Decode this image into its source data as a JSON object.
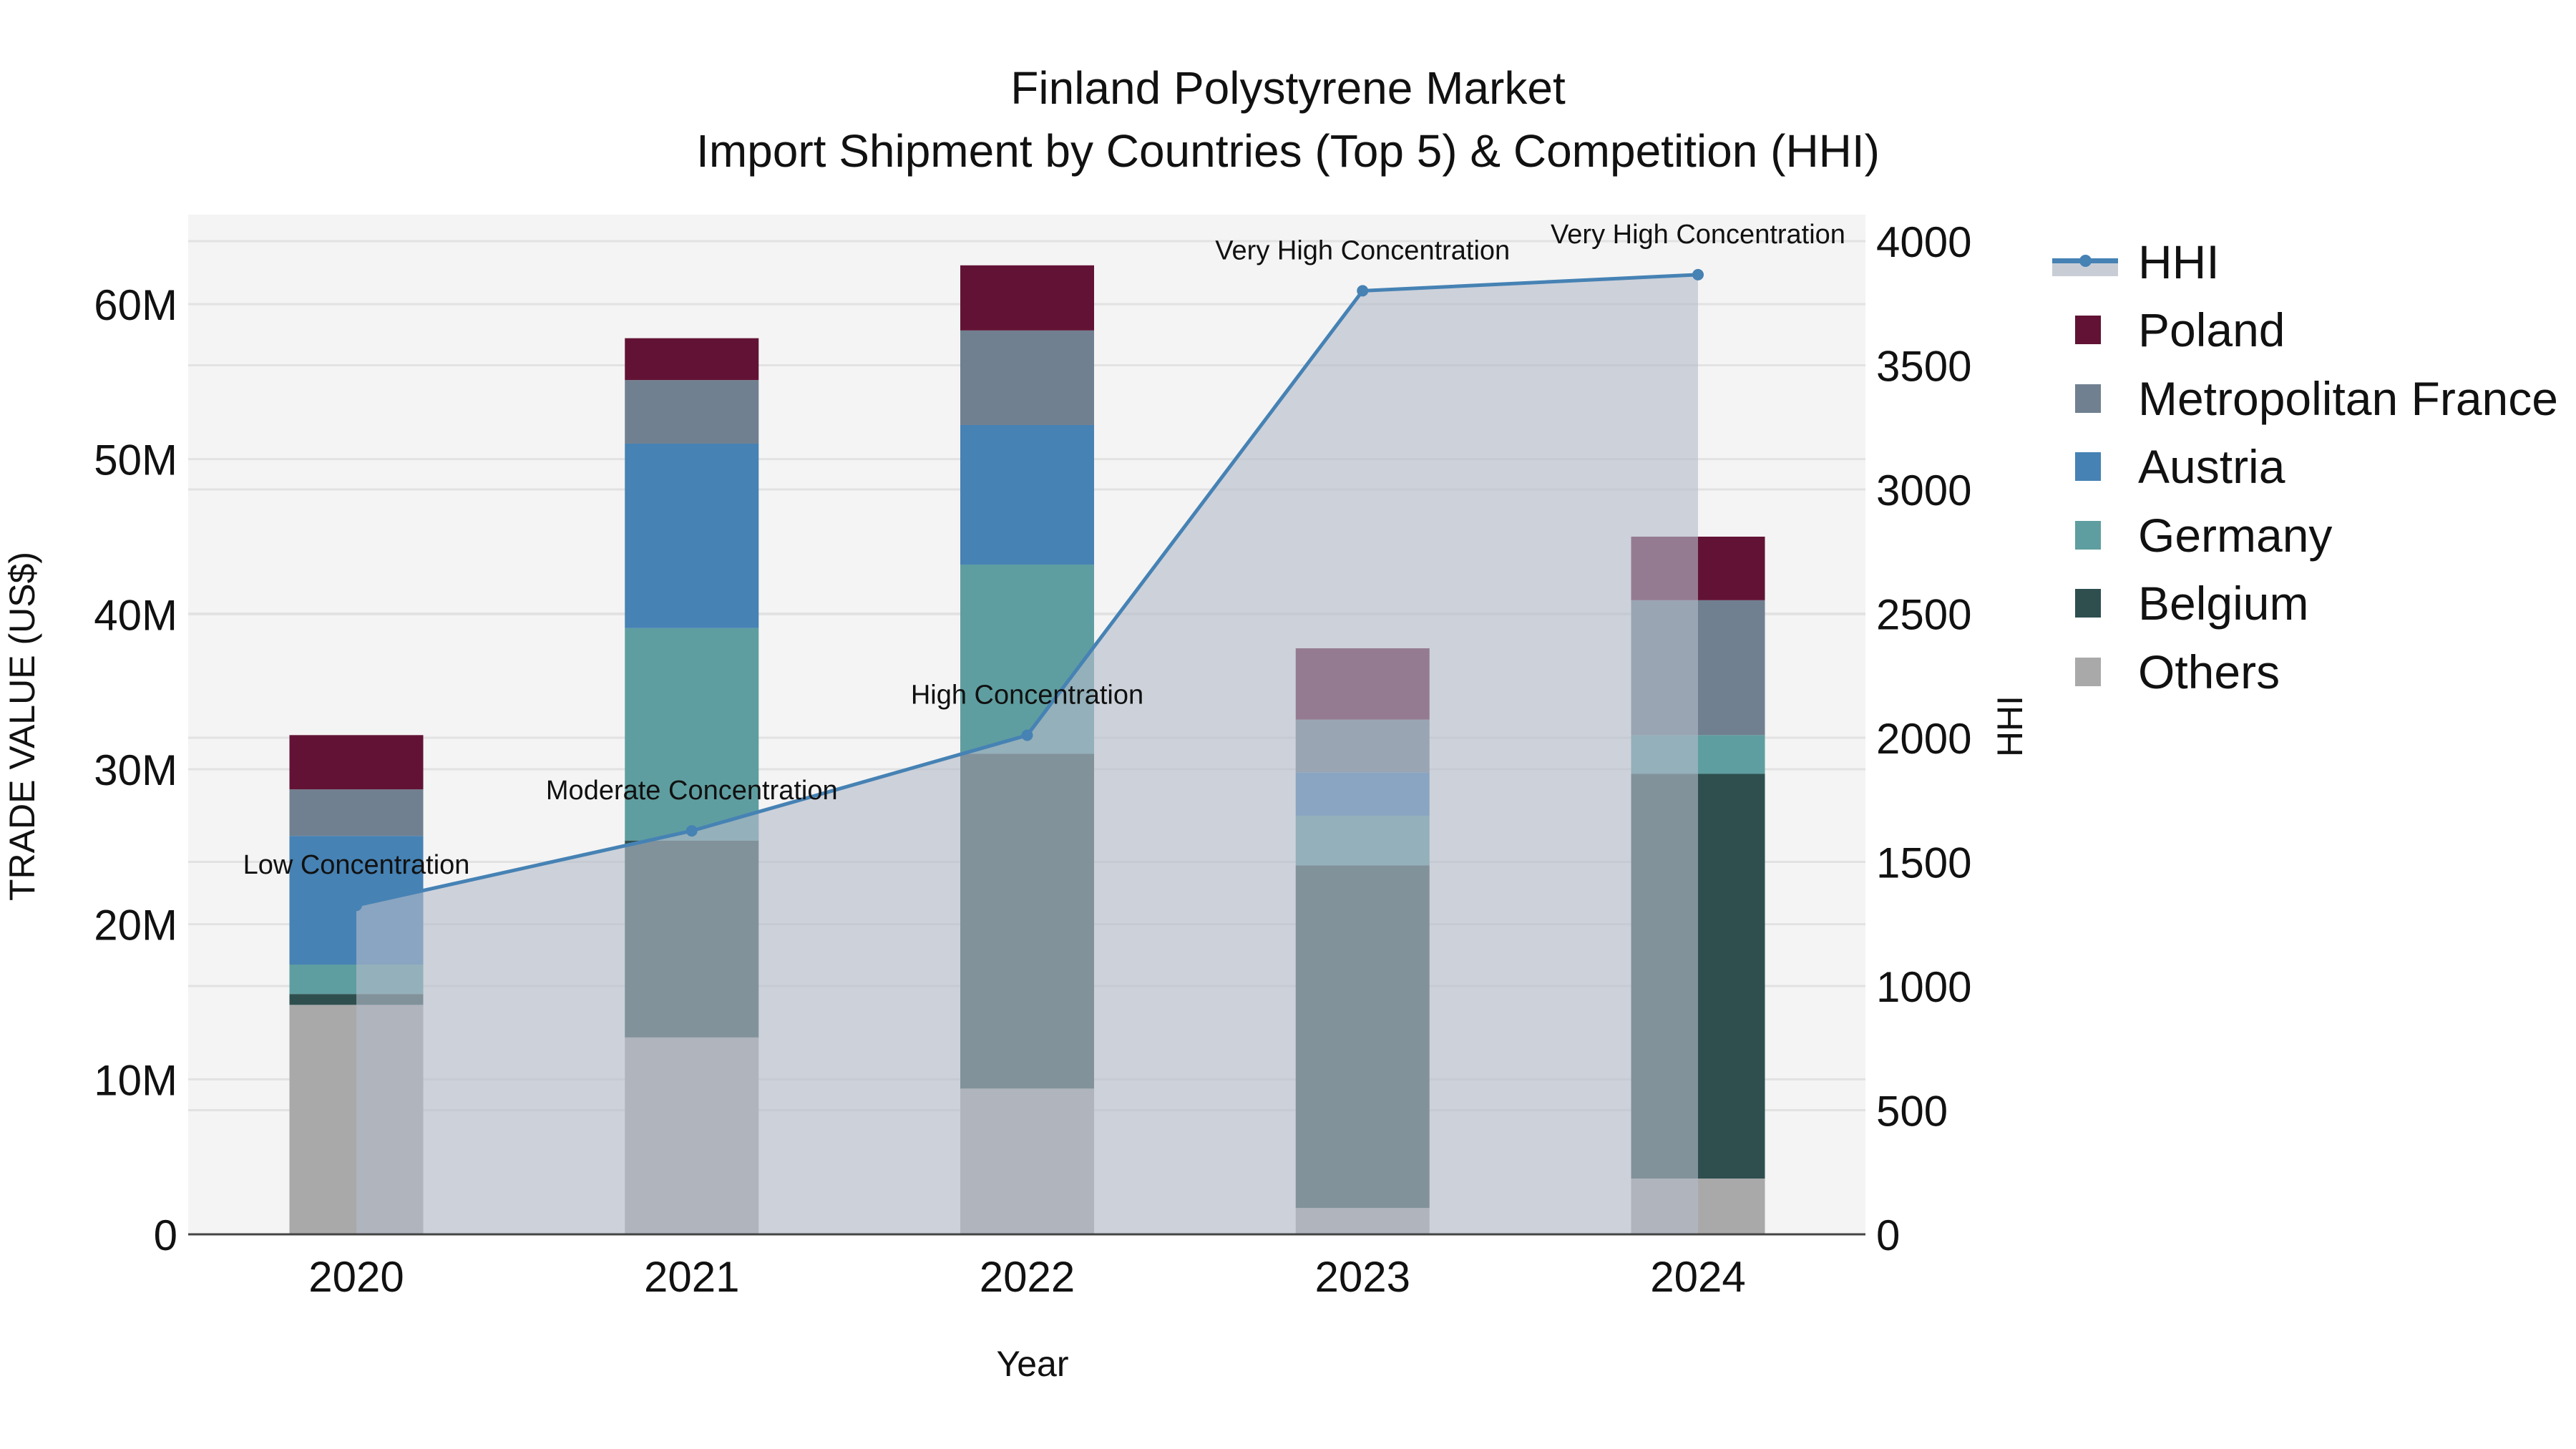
{
  "title": {
    "line1": "Finland Polystyrene Market",
    "line2": "Import Shipment by Countries (Top 5) & Competition (HHI)"
  },
  "axes": {
    "x_label": "Year",
    "y_left_label": "TRADE VALUE (US$)",
    "y_right_label": "HHI",
    "y_left_ticks": [
      "0",
      "10M",
      "20M",
      "30M",
      "40M",
      "50M",
      "60M"
    ],
    "y_right_ticks": [
      "0",
      "500",
      "1000",
      "1500",
      "2000",
      "2500",
      "3000",
      "3500",
      "4000"
    ]
  },
  "legend": [
    {
      "name": "HHI",
      "type": "line",
      "color": "#4682b4"
    },
    {
      "name": "Poland",
      "type": "bar",
      "color": "#621335"
    },
    {
      "name": "Metropolitan France",
      "type": "bar",
      "color": "#708090"
    },
    {
      "name": "Austria",
      "type": "bar",
      "color": "#4682b4"
    },
    {
      "name": "Germany",
      "type": "bar",
      "color": "#5f9ea0"
    },
    {
      "name": "Belgium",
      "type": "bar",
      "color": "#2f4f4f"
    },
    {
      "name": "Others",
      "type": "bar",
      "color": "#a9a9a9"
    }
  ],
  "chart_data": {
    "type": "bar",
    "stacked": true,
    "title": "Finland Polystyrene Market — Import Shipment by Countries (Top 5) & Competition (HHI)",
    "xlabel": "Year",
    "ylabel": "TRADE VALUE (US$)",
    "y2label": "HHI",
    "ylim": [
      0,
      65.5
    ],
    "y_unit": "M US$",
    "y2lim": [
      0,
      4100
    ],
    "grid": true,
    "legend_position": "right",
    "categories": [
      "2020",
      "2021",
      "2022",
      "2023",
      "2024"
    ],
    "series": [
      {
        "name": "Others",
        "color": "#a9a9a9",
        "values": [
          14.8,
          12.7,
          9.4,
          1.7,
          3.6
        ]
      },
      {
        "name": "Belgium",
        "color": "#2f4f4f",
        "values": [
          0.7,
          12.7,
          21.6,
          22.1,
          26.1
        ]
      },
      {
        "name": "Germany",
        "color": "#5f9ea0",
        "values": [
          1.9,
          13.7,
          12.2,
          3.2,
          2.5
        ]
      },
      {
        "name": "Austria",
        "color": "#4682b4",
        "values": [
          8.3,
          11.9,
          9.0,
          2.8,
          0.0
        ]
      },
      {
        "name": "Metropolitan France",
        "color": "#708090",
        "values": [
          3.0,
          4.1,
          6.1,
          3.4,
          8.7
        ]
      },
      {
        "name": "Poland",
        "color": "#621335",
        "values": [
          3.5,
          2.7,
          4.2,
          4.6,
          4.1
        ]
      }
    ],
    "totals": [
      32.2,
      57.8,
      62.5,
      37.8,
      45.0
    ],
    "line_series": {
      "name": "HHI",
      "axis": "right",
      "color": "#4682b4",
      "fill": "tozeroy",
      "values": [
        1325,
        1625,
        2010,
        3800,
        3865
      ],
      "annotations": [
        "Low Concentration",
        "Moderate Concentration",
        "High Concentration",
        "Very High Concentration",
        "Very High Concentration"
      ]
    }
  }
}
